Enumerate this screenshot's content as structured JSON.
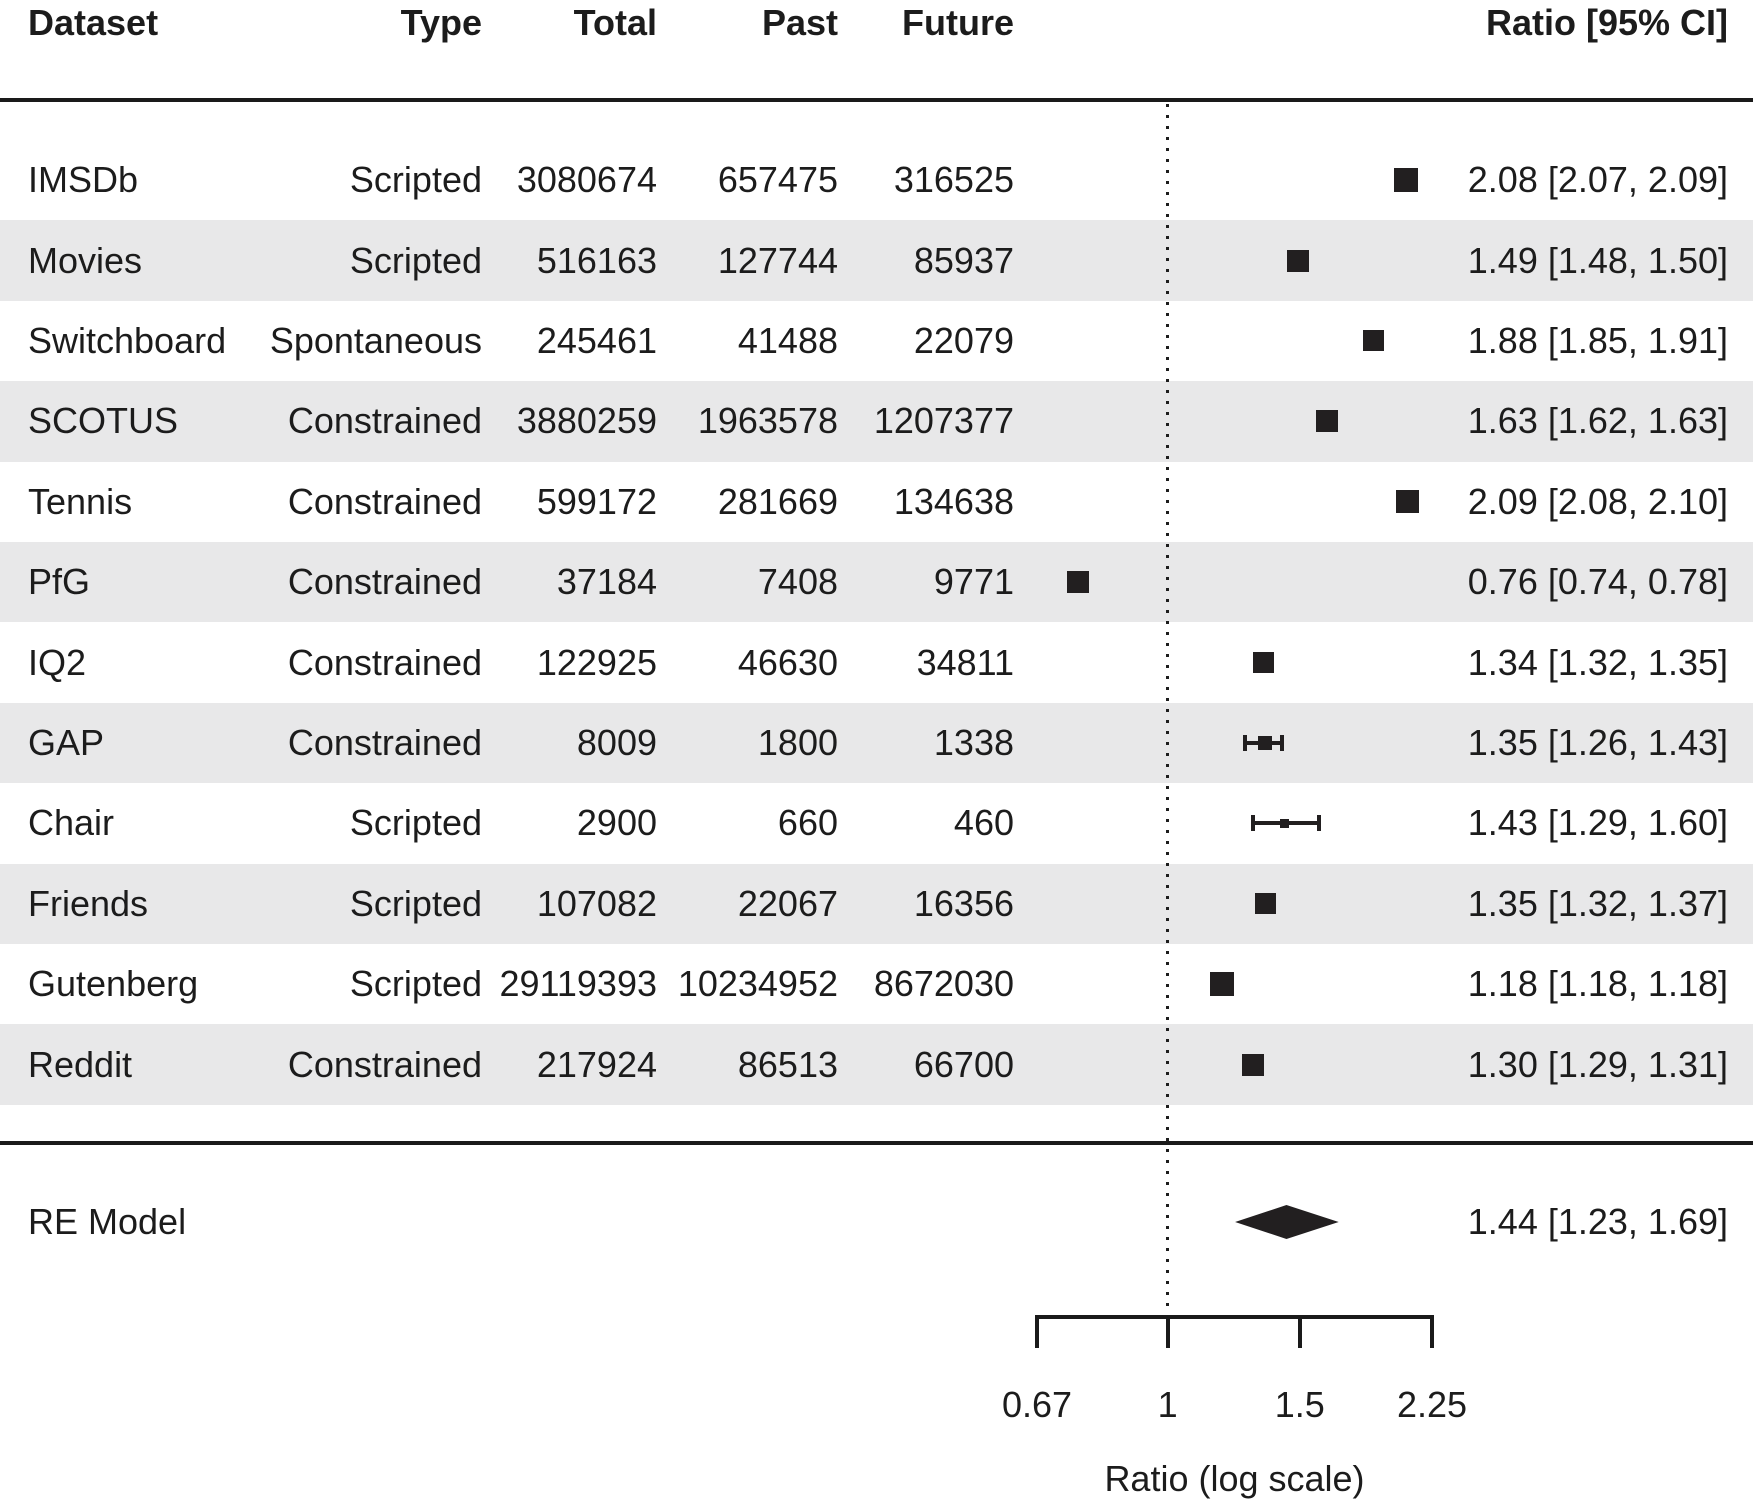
{
  "chart_data": {
    "type": "forest",
    "scale": "log",
    "columns": {
      "dataset": "Dataset",
      "type": "Type",
      "total": "Total",
      "past": "Past",
      "future": "Future",
      "ratio": "Ratio [95% CI]"
    },
    "rows": [
      {
        "dataset": "IMSDb",
        "type": "Scripted",
        "total": "3080674",
        "past": "657475",
        "future": "316525",
        "ratio_text": "2.08 [2.07, 2.09]",
        "ratio": 2.08,
        "ci_low": 2.07,
        "ci_high": 2.09,
        "marker_size_px": 24
      },
      {
        "dataset": "Movies",
        "type": "Scripted",
        "total": "516163",
        "past": "127744",
        "future": "85937",
        "ratio_text": "1.49 [1.48, 1.50]",
        "ratio": 1.49,
        "ci_low": 1.48,
        "ci_high": 1.5,
        "marker_size_px": 22
      },
      {
        "dataset": "Switchboard",
        "type": "Spontaneous",
        "total": "245461",
        "past": "41488",
        "future": "22079",
        "ratio_text": "1.88 [1.85, 1.91]",
        "ratio": 1.88,
        "ci_low": 1.85,
        "ci_high": 1.91,
        "marker_size_px": 21
      },
      {
        "dataset": "SCOTUS",
        "type": "Constrained",
        "total": "3880259",
        "past": "1963578",
        "future": "1207377",
        "ratio_text": "1.63 [1.62, 1.63]",
        "ratio": 1.63,
        "ci_low": 1.62,
        "ci_high": 1.63,
        "marker_size_px": 22
      },
      {
        "dataset": "Tennis",
        "type": "Constrained",
        "total": "599172",
        "past": "281669",
        "future": "134638",
        "ratio_text": "2.09 [2.08, 2.10]",
        "ratio": 2.09,
        "ci_low": 2.08,
        "ci_high": 2.1,
        "marker_size_px": 23
      },
      {
        "dataset": "PfG",
        "type": "Constrained",
        "total": "37184",
        "past": "7408",
        "future": "9771",
        "ratio_text": "0.76 [0.74, 0.78]",
        "ratio": 0.76,
        "ci_low": 0.74,
        "ci_high": 0.78,
        "marker_size_px": 22
      },
      {
        "dataset": "IQ2",
        "type": "Constrained",
        "total": "122925",
        "past": "46630",
        "future": "34811",
        "ratio_text": "1.34 [1.32, 1.35]",
        "ratio": 1.34,
        "ci_low": 1.32,
        "ci_high": 1.35,
        "marker_size_px": 21
      },
      {
        "dataset": "GAP",
        "type": "Constrained",
        "total": "8009",
        "past": "1800",
        "future": "1338",
        "ratio_text": "1.35 [1.26, 1.43]",
        "ratio": 1.35,
        "ci_low": 1.26,
        "ci_high": 1.43,
        "marker_size_px": 14
      },
      {
        "dataset": "Chair",
        "type": "Scripted",
        "total": "2900",
        "past": "660",
        "future": "460",
        "ratio_text": "1.43 [1.29, 1.60]",
        "ratio": 1.43,
        "ci_low": 1.29,
        "ci_high": 1.6,
        "marker_size_px": 9
      },
      {
        "dataset": "Friends",
        "type": "Scripted",
        "total": "107082",
        "past": "22067",
        "future": "16356",
        "ratio_text": "1.35 [1.32, 1.37]",
        "ratio": 1.35,
        "ci_low": 1.32,
        "ci_high": 1.37,
        "marker_size_px": 21
      },
      {
        "dataset": "Gutenberg",
        "type": "Scripted",
        "total": "29119393",
        "past": "10234952",
        "future": "8672030",
        "ratio_text": "1.18 [1.18, 1.18]",
        "ratio": 1.18,
        "ci_low": 1.18,
        "ci_high": 1.18,
        "marker_size_px": 24
      },
      {
        "dataset": "Reddit",
        "type": "Constrained",
        "total": "217924",
        "past": "86513",
        "future": "66700",
        "ratio_text": "1.30 [1.29, 1.31]",
        "ratio": 1.3,
        "ci_low": 1.29,
        "ci_high": 1.31,
        "marker_size_px": 22
      }
    ],
    "summary": {
      "label": "RE Model",
      "ratio_text": "1.44 [1.23, 1.69]",
      "ratio": 1.44,
      "ci_low": 1.23,
      "ci_high": 1.69
    },
    "axis": {
      "reference_line": 1,
      "tick_values": [
        0.67,
        1,
        1.5,
        2.25
      ],
      "tick_labels": [
        "0.67",
        "1",
        "1.5",
        "2.25"
      ],
      "label": "Ratio (log scale)",
      "xlim": [
        0.67,
        2.25
      ]
    }
  },
  "colors": {
    "text": "#1c1c1c",
    "stripe": "#e8e8e9",
    "marker": "#221f20"
  }
}
